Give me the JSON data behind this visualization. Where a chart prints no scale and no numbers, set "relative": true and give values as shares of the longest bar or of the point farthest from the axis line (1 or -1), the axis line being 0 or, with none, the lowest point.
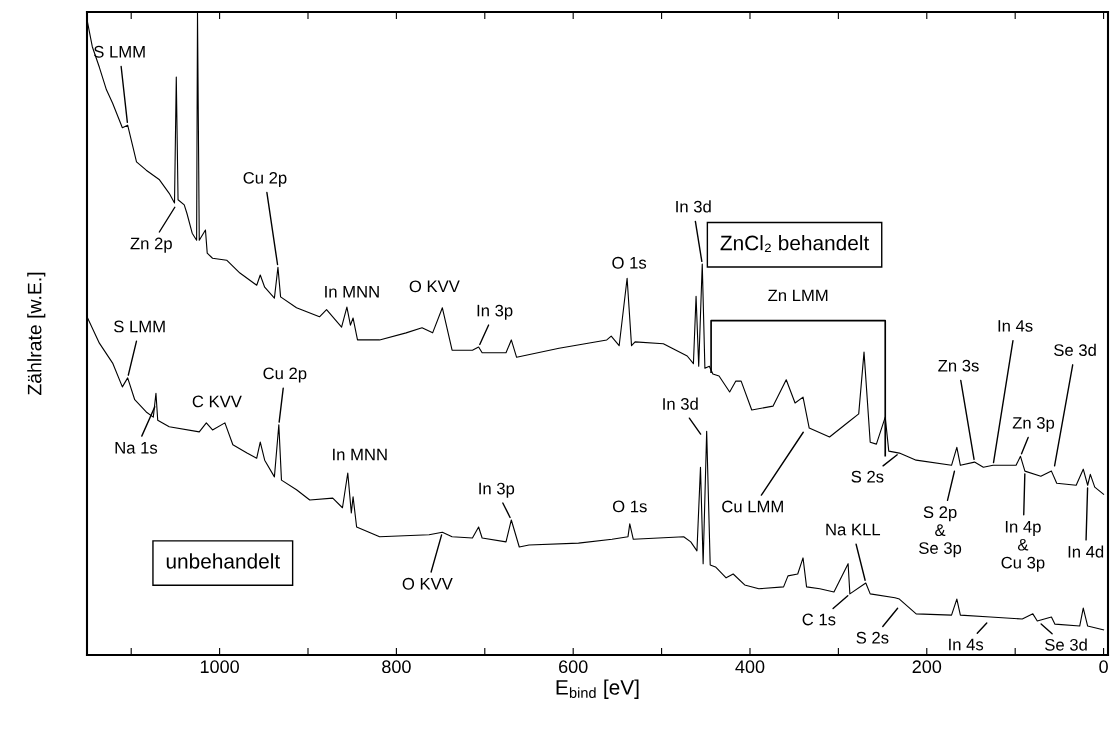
{
  "chart_data": {
    "type": "line",
    "relative": true,
    "xlabel": "E$_{bind}$ [eV]",
    "ylabel": "Zählrate [w.E.]",
    "tick_labels": "x",
    "xlim": [
      1150,
      -5
    ],
    "xticks": [
      1000,
      800,
      600,
      400,
      200,
      0,
      {
        "value": 1100,
        "label": null
      },
      {
        "value": 900,
        "label": null
      },
      {
        "value": 700,
        "label": null
      },
      {
        "value": 500,
        "label": null
      },
      {
        "value": 300,
        "label": null
      },
      {
        "value": 100,
        "label": null
      }
    ],
    "series": [
      {
        "color": "#000000",
        "x": [
          1150,
          1144,
          1136,
          1128,
          1121,
          1110,
          1104,
          1098,
          1094,
          1083,
          1068,
          1057,
          1051,
          1049,
          1047,
          1040,
          1037,
          1031,
          1026,
          1025,
          1023,
          1016,
          1014,
          1008,
          992,
          977,
          958,
          954,
          949,
          938,
          934,
          931,
          913,
          887,
          879,
          862,
          856,
          852,
          849,
          844,
          819,
          789,
          771,
          759,
          748,
          737,
          714,
          707,
          703,
          676,
          670,
          664,
          616,
          562,
          557,
          548,
          539,
          534,
          530,
          498,
          471,
          464,
          461,
          458,
          454,
          451,
          446,
          442,
          435,
          423,
          416,
          410,
          398,
          374,
          359,
          349,
          340,
          333,
          310,
          289,
          277,
          271,
          264,
          257,
          247,
          243,
          231,
          212,
          172,
          166,
          162,
          146,
          136,
          125,
          99,
          94,
          89,
          71,
          59,
          53,
          31,
          23,
          18,
          15,
          10,
          0
        ],
        "values": [
          0.988,
          0.946,
          0.914,
          0.879,
          0.858,
          0.82,
          0.824,
          0.79,
          0.767,
          0.754,
          0.739,
          0.718,
          0.703,
          0.899,
          0.708,
          0.7,
          0.687,
          0.656,
          0.645,
          1.0,
          0.645,
          0.661,
          0.625,
          0.617,
          0.614,
          0.594,
          0.575,
          0.591,
          0.572,
          0.555,
          0.603,
          0.557,
          0.54,
          0.526,
          0.537,
          0.51,
          0.541,
          0.513,
          0.524,
          0.49,
          0.49,
          0.501,
          0.509,
          0.501,
          0.54,
          0.474,
          0.474,
          0.479,
          0.47,
          0.47,
          0.49,
          0.463,
          0.477,
          0.49,
          0.496,
          0.481,
          0.586,
          0.481,
          0.487,
          0.484,
          0.465,
          0.453,
          0.558,
          0.449,
          0.608,
          0.446,
          0.449,
          0.437,
          0.434,
          0.409,
          0.426,
          0.426,
          0.381,
          0.387,
          0.428,
          0.392,
          0.401,
          0.353,
          0.339,
          0.362,
          0.375,
          0.471,
          0.331,
          0.328,
          0.37,
          0.317,
          0.314,
          0.303,
          0.295,
          0.323,
          0.295,
          0.3,
          0.292,
          0.295,
          0.295,
          0.309,
          0.286,
          0.278,
          0.286,
          0.267,
          0.264,
          0.289,
          0.264,
          0.281,
          0.261,
          0.25
        ]
      },
      {
        "color": "#000000",
        "x": [
          1150,
          1136,
          1121,
          1110,
          1104,
          1096,
          1083,
          1075,
          1072,
          1070,
          1057,
          1023,
          1015,
          1008,
          994,
          985,
          969,
          958,
          954,
          949,
          938,
          933,
          930,
          913,
          898,
          872,
          861,
          855,
          851,
          849,
          845,
          819,
          763,
          748,
          737,
          714,
          707,
          703,
          676,
          670,
          661,
          650,
          594,
          556,
          538,
          536,
          532,
          475,
          467,
          460,
          456,
          453,
          449,
          445,
          439,
          427,
          419,
          406,
          390,
          362,
          357,
          346,
          340,
          336,
          321,
          305,
          289,
          287,
          269,
          264,
          236,
          231,
          212,
          172,
          166,
          162,
          128,
          92,
          80,
          75,
          59,
          55,
          27,
          23,
          18,
          0
        ],
        "values": [
          0.526,
          0.485,
          0.454,
          0.417,
          0.431,
          0.397,
          0.378,
          0.37,
          0.407,
          0.365,
          0.355,
          0.347,
          0.361,
          0.35,
          0.361,
          0.327,
          0.314,
          0.306,
          0.331,
          0.303,
          0.277,
          0.358,
          0.272,
          0.257,
          0.241,
          0.244,
          0.229,
          0.283,
          0.221,
          0.246,
          0.199,
          0.184,
          0.187,
          0.191,
          0.184,
          0.182,
          0.199,
          0.182,
          0.176,
          0.21,
          0.168,
          0.171,
          0.174,
          0.18,
          0.184,
          0.204,
          0.18,
          0.184,
          0.176,
          0.162,
          0.292,
          0.142,
          0.348,
          0.14,
          0.137,
          0.12,
          0.126,
          0.109,
          0.103,
          0.106,
          0.123,
          0.126,
          0.151,
          0.106,
          0.103,
          0.098,
          0.142,
          0.095,
          0.112,
          0.095,
          0.089,
          0.087,
          0.064,
          0.062,
          0.087,
          0.062,
          0.059,
          0.056,
          0.064,
          0.053,
          0.059,
          0.048,
          0.045,
          0.073,
          0.045,
          0.039
        ]
      }
    ],
    "bands": [
      {
        "axis": "x",
        "from": 444,
        "to": 247,
        "label": "Zn LMM"
      }
    ],
    "annotations": [
      {
        "text": "S LMM",
        "x": 1104,
        "y": 0.824
      },
      {
        "text": "Zn 2p",
        "x": 1049,
        "y": 0.7
      },
      {
        "text": "Cu 2p",
        "x": 934,
        "y": 0.603
      },
      {
        "text": "In MNN",
        "x": 856,
        "y": 0.541
      },
      {
        "text": "O KVV",
        "x": 748,
        "y": 0.54
      },
      {
        "text": "In 3p",
        "x": 707,
        "y": 0.479
      },
      {
        "text": "O 1s",
        "x": 539,
        "y": 0.586
      },
      {
        "text": "In 3d",
        "x": 454,
        "y": 0.608
      },
      "ZnCl₂ behandelt",
      {
        "text": "Zn 3s",
        "x": 146,
        "y": 0.3
      },
      {
        "text": "In 4s",
        "x": 125,
        "y": 0.295
      },
      {
        "text": "Se 3d",
        "x": 56,
        "y": 0.29
      },
      {
        "text": "Zn 3p",
        "x": 94,
        "y": 0.309
      },
      {
        "text": "S 2s",
        "x": 231,
        "y": 0.314
      },
      {
        "text": "S 2p\n&\nSe 3p",
        "x": 168,
        "y": 0.29
      },
      {
        "text": "In 4p\n&\nCu 3p",
        "x": 89,
        "y": 0.286
      },
      {
        "text": "In 4d",
        "x": 18,
        "y": 0.264
      },
      {
        "text": "Cu LMM",
        "x": 338,
        "y": 0.35
      },
      {
        "text": "S LMM",
        "x": 1104,
        "y": 0.431
      },
      {
        "text": "Na 1s",
        "x": 1072,
        "y": 0.39
      },
      {
        "text": "C KVV",
        "x": 994,
        "y": 0.361
      },
      {
        "text": "Cu 2p",
        "x": 933,
        "y": 0.358
      },
      {
        "text": "In MNN",
        "x": 855,
        "y": 0.283
      },
      {
        "text": "In 3p",
        "x": 670,
        "y": 0.21
      },
      {
        "text": "O KVV",
        "x": 748,
        "y": 0.191
      },
      "unbehandelt",
      {
        "text": "O 1s",
        "x": 536,
        "y": 0.204
      },
      {
        "text": "In 3d",
        "x": 454,
        "y": 0.34
      },
      {
        "text": "Na KLL",
        "x": 269,
        "y": 0.112
      },
      {
        "text": "C 1s",
        "x": 287,
        "y": 0.095
      },
      {
        "text": "S 2s",
        "x": 231,
        "y": 0.076
      },
      {
        "text": "In 4s",
        "x": 130,
        "y": 0.053
      },
      {
        "text": "Se 3d",
        "x": 73,
        "y": 0.051
      }
    ]
  }
}
